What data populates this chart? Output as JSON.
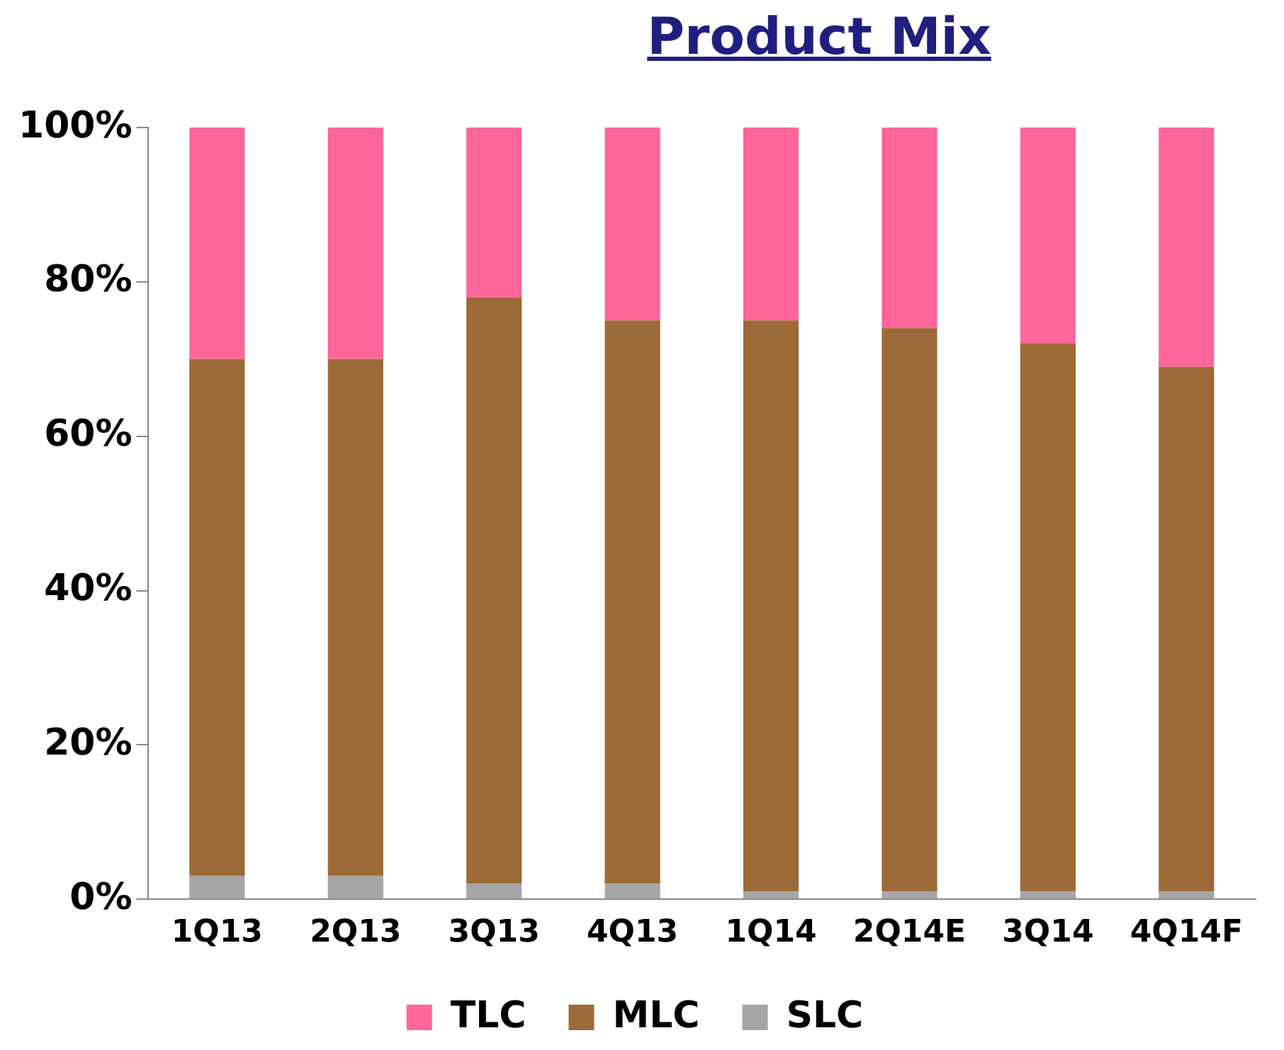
{
  "chart_data": {
    "type": "bar",
    "title": "Product Mix",
    "stacked": true,
    "legend": "bottom",
    "grid": false,
    "categories": [
      "1Q13",
      "2Q13",
      "3Q13",
      "4Q13",
      "1Q14",
      "2Q14E",
      "3Q14",
      "4Q14F"
    ],
    "series": [
      {
        "name": "SLC",
        "color": "#a6a6a6",
        "values": [
          3,
          3,
          2,
          2,
          1,
          1,
          1,
          1
        ]
      },
      {
        "name": "MLC",
        "color": "#9c6a36",
        "values": [
          67,
          67,
          76,
          73,
          74,
          73,
          71,
          68
        ]
      },
      {
        "name": "TLC",
        "color": "#ff6699",
        "values": [
          30,
          30,
          22,
          25,
          25,
          26,
          28,
          31
        ]
      }
    ],
    "ylim": [
      0,
      100
    ],
    "yticks": [
      {
        "value": 0,
        "label": "0%"
      },
      {
        "value": 20,
        "label": "20%"
      },
      {
        "value": 40,
        "label": "40%"
      },
      {
        "value": 60,
        "label": "60%"
      },
      {
        "value": 80,
        "label": "80%"
      },
      {
        "value": 100,
        "label": "100%"
      }
    ]
  }
}
